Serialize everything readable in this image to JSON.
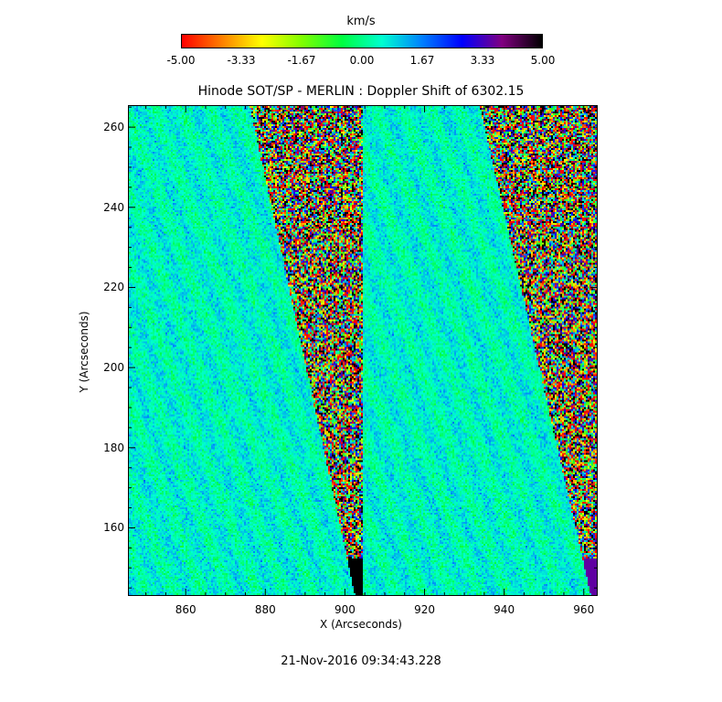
{
  "chart_data": {
    "type": "heatmap",
    "title": "Hinode SOT/SP - MERLIN : Doppler Shift of 6302.15",
    "xlabel": "X (Arcseconds)",
    "ylabel": "Y (Arcseconds)",
    "xlim": [
      845.5,
      963.5
    ],
    "ylim": [
      143,
      265.5
    ],
    "x_ticks": [
      "860",
      "880",
      "900",
      "920",
      "940",
      "960"
    ],
    "y_ticks": [
      "160",
      "180",
      "200",
      "220",
      "240",
      "260"
    ],
    "colorbar": {
      "title": "km/s",
      "min": -5.0,
      "max": 5.0,
      "ticks": [
        "-5.00",
        "-3.33",
        "-1.67",
        "0.00",
        "1.67",
        "3.33",
        "5.00"
      ],
      "colors": [
        "#ff0000",
        "#ff7f00",
        "#ffff00",
        "#7fff00",
        "#00ff40",
        "#00ffd0",
        "#0080ff",
        "#0000ff",
        "#800080",
        "#000000"
      ]
    },
    "panels": [
      {
        "x_start": 845.5,
        "x_end": 904.5,
        "limb_x_top": 876.0,
        "limb_x_bottom": 902.5
      },
      {
        "x_start": 904.5,
        "x_end": 963.5,
        "limb_x_top": 934.0,
        "limb_x_bottom": 962.0
      }
    ],
    "dominant_value_km_s": 0.5
  },
  "footer": {
    "timestamp": "21-Nov-2016 09:34:43.228"
  }
}
